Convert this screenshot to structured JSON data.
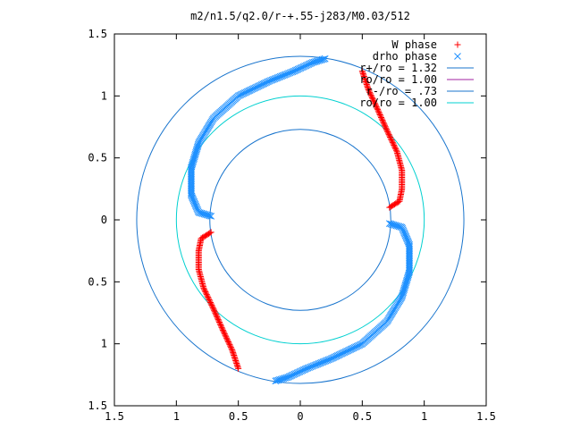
{
  "chart_data": {
    "type": "scatter",
    "title": "m2/n1.5/q2.0/r-+.55-j283/M0.03/512",
    "xlabel": "",
    "ylabel": "",
    "xlim": [
      -1.5,
      1.5
    ],
    "ylim": [
      -1.5,
      1.5
    ],
    "x_tick_labels": [
      "1.5",
      "1",
      "0.5",
      "0",
      "0.5",
      "1",
      "1.5"
    ],
    "y_tick_labels": [
      "1.5",
      "1",
      "0.5",
      "0",
      "0.5",
      "1",
      "1.5"
    ],
    "grid": false,
    "legend_position": "top-right",
    "colors": {
      "w_phase": "#ff0000",
      "drho_phase": "#1e90ff",
      "r_plus": "#1874cd",
      "r_zero_a": "#a020a0",
      "r_minus": "#1874cd",
      "r_zero_b": "#00d0d0"
    },
    "series": [
      {
        "name": "W phase",
        "marker": "+",
        "curves": [
          [
            [
              0.5,
              1.2
            ],
            [
              0.55,
              1.05
            ],
            [
              0.62,
              0.9
            ],
            [
              0.7,
              0.72
            ],
            [
              0.78,
              0.55
            ],
            [
              0.82,
              0.4
            ],
            [
              0.82,
              0.25
            ],
            [
              0.8,
              0.15
            ],
            [
              0.72,
              0.1
            ]
          ],
          [
            [
              -0.5,
              -1.2
            ],
            [
              -0.55,
              -1.05
            ],
            [
              -0.62,
              -0.9
            ],
            [
              -0.7,
              -0.72
            ],
            [
              -0.78,
              -0.55
            ],
            [
              -0.82,
              -0.4
            ],
            [
              -0.82,
              -0.25
            ],
            [
              -0.8,
              -0.15
            ],
            [
              -0.72,
              -0.1
            ]
          ]
        ]
      },
      {
        "name": "drho phase",
        "marker": "x",
        "curves": [
          [
            [
              -0.72,
              0.03
            ],
            [
              -0.82,
              0.06
            ],
            [
              -0.88,
              0.2
            ],
            [
              -0.88,
              0.42
            ],
            [
              -0.82,
              0.62
            ],
            [
              -0.7,
              0.82
            ],
            [
              -0.5,
              1.0
            ],
            [
              -0.25,
              1.12
            ],
            [
              -0.05,
              1.2
            ],
            [
              0.1,
              1.27
            ],
            [
              0.2,
              1.3
            ]
          ],
          [
            [
              0.72,
              -0.03
            ],
            [
              0.82,
              -0.06
            ],
            [
              0.88,
              -0.2
            ],
            [
              0.88,
              -0.42
            ],
            [
              0.82,
              -0.62
            ],
            [
              0.7,
              -0.82
            ],
            [
              0.5,
              -1.0
            ],
            [
              0.25,
              -1.12
            ],
            [
              0.05,
              -1.2
            ],
            [
              -0.1,
              -1.27
            ],
            [
              -0.2,
              -1.3
            ]
          ]
        ]
      },
      {
        "name": "r+/ro = 1.32",
        "type": "circle",
        "radius": 1.32
      },
      {
        "name": "ro/ro = 1.00",
        "type": "circle",
        "radius": 1.0,
        "drawn": false
      },
      {
        "name": "r-/ro = .73",
        "type": "circle",
        "radius": 0.73
      },
      {
        "name": "ro/ro = 1.00",
        "type": "circle",
        "radius": 1.0
      }
    ]
  }
}
